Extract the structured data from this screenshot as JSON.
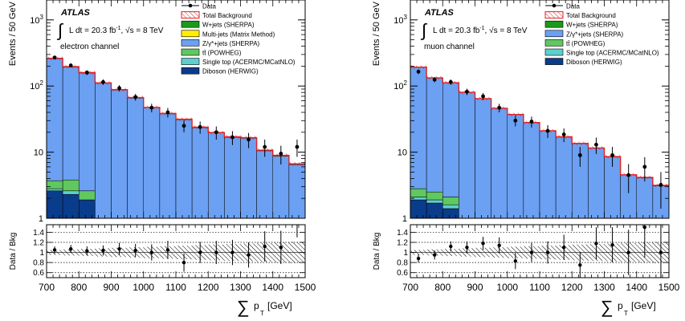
{
  "chart_data": [
    {
      "type": "bar",
      "id": "electron",
      "atlas_label": "ATLAS",
      "lumi_text": "L dt = 20.3 fb",
      "lumi_sup": "-1",
      "sqrt_s_text": ", √s = 8 TeV",
      "channel_label": "electron channel",
      "ylabel": "Events / 50 GeV",
      "ratio_ylabel": "Data / Bkg",
      "xlabel_main": "p",
      "xlabel_sub": "T",
      "xlabel_unit": "[GeV]",
      "xlabel_symbol": "∑",
      "xlim": [
        700,
        1500
      ],
      "ylim": [
        1,
        2000
      ],
      "yscale": "log",
      "ratio_ylim": [
        0.5,
        1.55
      ],
      "x_ticks": [
        "700",
        "800",
        "900",
        "1000",
        "1100",
        "1200",
        "1300",
        "1400",
        "1500"
      ],
      "y_ticks": [
        "1",
        "10",
        "10²",
        "10³"
      ],
      "ratio_ticks": [
        "0.6",
        "0.8",
        "1",
        "1.2",
        "1.4"
      ],
      "legend": [
        {
          "name": "Data",
          "style": "data"
        },
        {
          "name": "Total Background",
          "style": "hatch"
        },
        {
          "name": "W+jets (SHERPA)",
          "color": "#1a9a1a"
        },
        {
          "name": "Multi-jets (Matrix Method)",
          "color": "#ffee00"
        },
        {
          "name": "Z/γ*+jets (SHERPA)",
          "color": "#6ba0f2"
        },
        {
          "name": "tt̄ (POWHEG)",
          "color": "#5fc85f"
        },
        {
          "name": "Single top (ACERMC/MCatNLO)",
          "color": "#5ecfcf"
        },
        {
          "name": "Diboson (HERWIG)",
          "color": "#0a3c8c"
        }
      ],
      "bins": [
        700,
        750,
        800,
        850,
        900,
        950,
        1000,
        1050,
        1100,
        1150,
        1200,
        1250,
        1300,
        1350,
        1400,
        1450,
        1500
      ],
      "stack": [
        {
          "name": "Diboson (HERWIG)",
          "color": "#0a3c8c",
          "values": [
            2.6,
            2.3,
            1.9,
            0,
            0,
            0,
            0,
            0,
            0,
            0,
            0,
            0,
            0,
            0,
            0,
            0
          ]
        },
        {
          "name": "Single top (ACERMC/MCatNLO)",
          "color": "#5ecfcf",
          "values": [
            0.2,
            0.3,
            0,
            0,
            0,
            0,
            0,
            0,
            0,
            0,
            0,
            0,
            0,
            0,
            0,
            0
          ]
        },
        {
          "name": "tt̄ (POWHEG)",
          "color": "#5fc85f",
          "values": [
            0.9,
            1.2,
            0.7,
            0,
            0.1,
            0.1,
            0,
            0,
            0,
            0,
            0,
            0,
            0,
            0,
            0,
            0
          ]
        },
        {
          "name": "Z/γ*+jets (SHERPA)",
          "color": "#6ba0f2",
          "values": [
            255,
            190,
            155,
            110,
            87,
            66,
            47,
            38,
            31,
            23.5,
            19.5,
            16.8,
            16.3,
            10.5,
            8.7,
            6.5
          ]
        },
        {
          "name": "Multi-jets (Matrix Method)",
          "color": "#ffee00",
          "values": [
            3,
            2,
            1.6,
            1.2,
            0.9,
            0.7,
            0.5,
            0.4,
            0.35,
            0.3,
            0.2,
            0.2,
            0.2,
            0.15,
            0.2,
            0.1
          ]
        },
        {
          "name": "W+jets (SHERPA)",
          "color": "#1a9a1a",
          "values": [
            0.5,
            0.4,
            0.3,
            0.2,
            0.15,
            0.1,
            0.1,
            0.1,
            0.1,
            0.05,
            0.05,
            0.05,
            0.05,
            0.05,
            0.05,
            0.05
          ]
        }
      ],
      "data_y": [
        270,
        205,
        160,
        115,
        93,
        68,
        47,
        40,
        25,
        24,
        20,
        16.8,
        15.5,
        12,
        9.5,
        12
      ],
      "data_err": [
        16,
        14,
        13,
        11,
        10,
        8,
        7,
        6.5,
        5,
        5,
        4.5,
        4,
        4,
        3.5,
        3,
        3.5
      ],
      "ratio": [
        1.05,
        1.07,
        1.03,
        1.04,
        1.07,
        1.04,
        1.0,
        1.05,
        0.8,
        1.0,
        1.0,
        1.0,
        0.95,
        1.12,
        1.1,
        1.8
      ],
      "ratio_err": [
        0.07,
        0.08,
        0.09,
        0.1,
        0.12,
        0.13,
        0.16,
        0.18,
        0.18,
        0.21,
        0.23,
        0.25,
        0.25,
        0.3,
        0.33,
        0.5
      ]
    },
    {
      "type": "bar",
      "id": "muon",
      "atlas_label": "ATLAS",
      "lumi_text": "L dt = 20.3 fb",
      "lumi_sup": "-1",
      "sqrt_s_text": ", √s = 8 TeV",
      "channel_label": "muon channel",
      "ylabel": "Events / 50 GeV",
      "ratio_ylabel": "Data / Bkg",
      "xlabel_main": "p",
      "xlabel_sub": "T",
      "xlabel_unit": "[GeV]",
      "xlabel_symbol": "∑",
      "xlim": [
        700,
        1500
      ],
      "ylim": [
        1,
        2000
      ],
      "yscale": "log",
      "ratio_ylim": [
        0.5,
        1.55
      ],
      "x_ticks": [
        "700",
        "800",
        "900",
        "1000",
        "1100",
        "1200",
        "1300",
        "1400",
        "1500"
      ],
      "y_ticks": [
        "1",
        "10",
        "10²",
        "10³"
      ],
      "ratio_ticks": [
        "0.6",
        "0.8",
        "1",
        "1.2",
        "1.4"
      ],
      "legend": [
        {
          "name": "Data",
          "style": "data"
        },
        {
          "name": "Total Background",
          "style": "hatch"
        },
        {
          "name": "W+jets (SHERPA)",
          "color": "#1a9a1a"
        },
        {
          "name": "Z/γ*+jets (SHERPA)",
          "color": "#6ba0f2"
        },
        {
          "name": "tt̄ (POWHEG)",
          "color": "#5fc85f"
        },
        {
          "name": "Single top (ACERMC/MCatNLO)",
          "color": "#5ecfcf"
        },
        {
          "name": "Diboson (HERWIG)",
          "color": "#0a3c8c"
        }
      ],
      "bins": [
        700,
        750,
        800,
        850,
        900,
        950,
        1000,
        1050,
        1100,
        1150,
        1200,
        1250,
        1300,
        1350,
        1400,
        1450,
        1500
      ],
      "stack": [
        {
          "name": "Diboson (HERWIG)",
          "color": "#0a3c8c",
          "values": [
            1.9,
            1.7,
            1.4,
            0,
            0,
            0,
            0,
            0,
            0,
            0,
            0,
            0,
            0,
            0,
            0,
            0
          ]
        },
        {
          "name": "Single top (ACERMC/MCatNLO)",
          "color": "#5ecfcf",
          "values": [
            0.2,
            0.2,
            0.2,
            0,
            0,
            0,
            0,
            0,
            0,
            0,
            0,
            0,
            0,
            0,
            0,
            0
          ]
        },
        {
          "name": "tt̄ (POWHEG)",
          "color": "#5fc85f",
          "values": [
            0.7,
            0.6,
            0.5,
            0.2,
            0.3,
            0,
            0,
            0,
            0,
            0,
            0,
            0,
            0,
            0,
            0,
            0
          ]
        },
        {
          "name": "Z/γ*+jets (SHERPA)",
          "color": "#6ba0f2",
          "values": [
            190,
            130,
            110,
            80,
            64,
            46,
            37,
            28,
            21,
            17,
            13.5,
            11.5,
            8.5,
            4.5,
            4.1,
            3.1
          ]
        },
        {
          "name": "W+jets (SHERPA)",
          "color": "#1a9a1a",
          "values": [
            0.2,
            0.2,
            0.1,
            0.1,
            0.1,
            0.05,
            0.05,
            0.05,
            0.05,
            0.05,
            0.05,
            0.05,
            0.05,
            0.05,
            0.05,
            0.05
          ]
        }
      ],
      "data_y": [
        165,
        125,
        115,
        82,
        70,
        47,
        30,
        29,
        21,
        18.5,
        9,
        13,
        9,
        4.5,
        6,
        3.2
      ],
      "data_err": [
        13,
        11,
        10.5,
        9,
        8.5,
        7,
        5.5,
        5.4,
        4.6,
        4.3,
        3,
        3.6,
        3,
        2.1,
        2.4,
        1.8
      ],
      "ratio": [
        0.88,
        0.95,
        1.12,
        1.1,
        1.18,
        1.14,
        0.83,
        1.0,
        1.0,
        1.1,
        0.75,
        1.18,
        1.15,
        1.0,
        1.5,
        1.0
      ],
      "ratio_err": [
        0.08,
        0.09,
        0.1,
        0.12,
        0.13,
        0.16,
        0.16,
        0.19,
        0.22,
        0.25,
        0.25,
        0.32,
        0.35,
        0.45,
        0.6,
        0.6
      ]
    }
  ]
}
